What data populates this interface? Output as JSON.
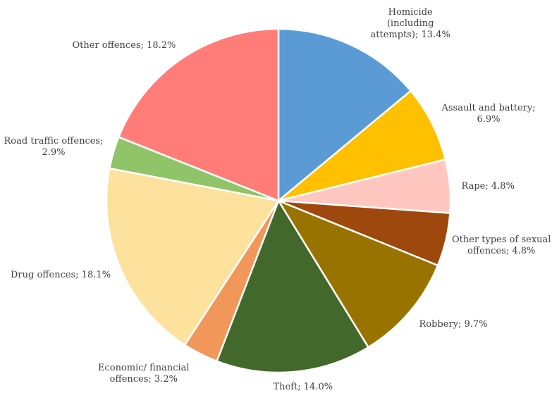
{
  "chart_data": {
    "type": "pie",
    "unit": "%",
    "slices": [
      {
        "name": "Homicide (including attempts)",
        "value": 13.4,
        "color": "#5B9BD5",
        "label_lines": [
          "Homicide",
          "(including",
          "attempts); 13.4%"
        ]
      },
      {
        "name": "Assault and battery",
        "value": 6.9,
        "color": "#FFC000",
        "label_lines": [
          "Assault and battery;",
          "6.9%"
        ]
      },
      {
        "name": "Rape",
        "value": 4.8,
        "color": "#FFC7C0",
        "label_lines": [
          "Rape; 4.8%"
        ]
      },
      {
        "name": "Other types of sexual offences",
        "value": 4.8,
        "color": "#9E480E",
        "label_lines": [
          "Other types of sexual",
          "offences; 4.8%"
        ]
      },
      {
        "name": "Robbery",
        "value": 9.7,
        "color": "#997300",
        "label_lines": [
          "Robbery; 9.7%"
        ]
      },
      {
        "name": "Theft",
        "value": 14.0,
        "color": "#43682B",
        "label_lines": [
          "Theft; 14.0%"
        ]
      },
      {
        "name": "Economic/ financial offences",
        "value": 3.2,
        "color": "#F1975A",
        "label_lines": [
          "Economic/ financial",
          "offences; 3.2%"
        ]
      },
      {
        "name": "Drug offences",
        "value": 18.1,
        "color": "#FCE29C",
        "label_lines": [
          "Drug offences; 18.1%"
        ]
      },
      {
        "name": "Road traffic offences",
        "value": 2.9,
        "color": "#8FC469",
        "label_lines": [
          "Road traffic offences;",
          "2.9%"
        ]
      },
      {
        "name": "Other offences",
        "value": 18.2,
        "color": "#FF7C78",
        "label_lines": [
          "Other offences; 18.2%"
        ]
      }
    ],
    "start_angle": "12 o'clock",
    "direction": "clockwise",
    "legend": "none",
    "labels": "outside, category name and percentage"
  }
}
